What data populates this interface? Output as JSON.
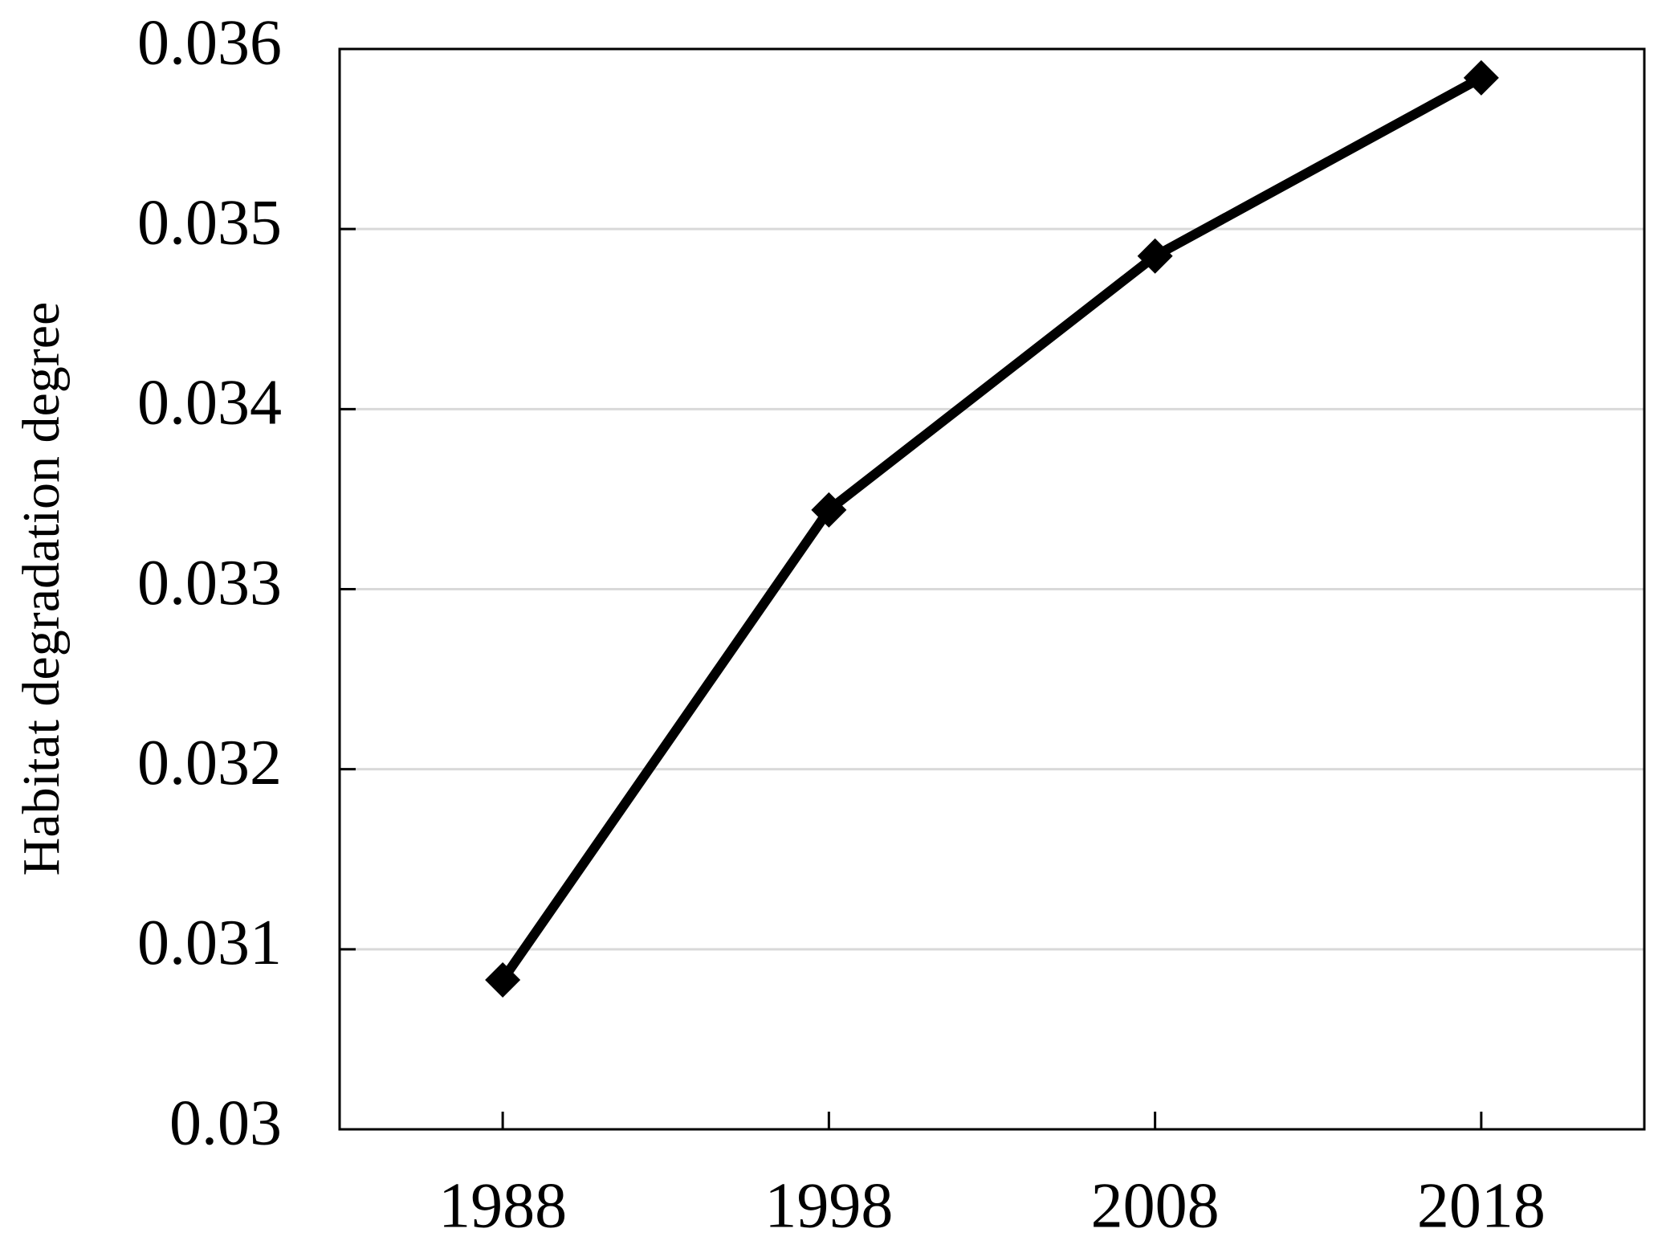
{
  "chart_data": {
    "type": "line",
    "y_label": "Habitat degradation degree",
    "categories": [
      "1988",
      "1998",
      "2008",
      "2018"
    ],
    "values": [
      0.03083,
      0.03344,
      0.03485,
      0.03584
    ],
    "color": "#000000",
    "ylim": [
      0.03,
      0.036
    ],
    "yticks": [
      0.03,
      0.031,
      0.032,
      0.033,
      0.034,
      0.035,
      0.036
    ],
    "grid": true
  }
}
